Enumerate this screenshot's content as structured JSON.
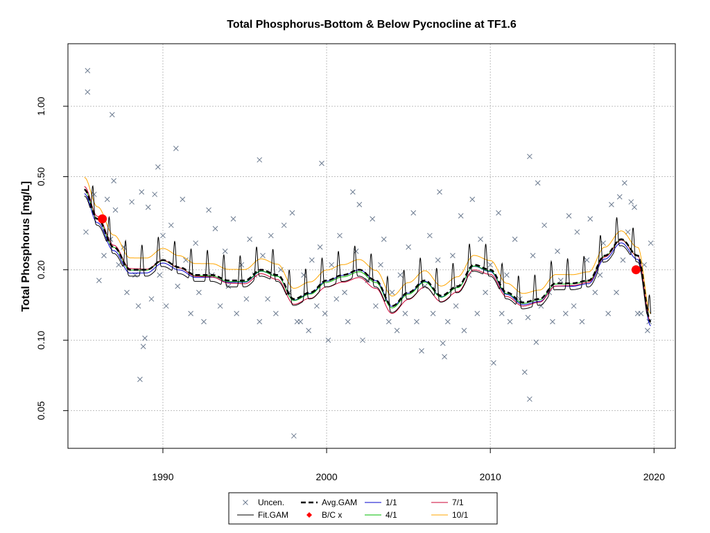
{
  "chart_data": {
    "type": "scatter",
    "title": "Total Phosphorus-Bottom & Below Pycnocline at TF1.6",
    "xlabel": "",
    "ylabel": "Total Phosphorus [mg/L]",
    "y_scale": "log",
    "xlim": [
      1984.2,
      2021.3
    ],
    "ylim": [
      0.0345,
      1.85
    ],
    "x_ticks": [
      1990,
      2000,
      2010,
      2020
    ],
    "x_tick_labels": [
      "1990",
      "2000",
      "2010",
      "2020"
    ],
    "y_ticks": [
      0.05,
      0.1,
      0.2,
      0.5,
      1.0
    ],
    "y_tick_labels": [
      "0.05",
      "0.10",
      "0.20",
      "0.50",
      "1.00"
    ],
    "grid": true,
    "legend_position": "bottom",
    "colors": {
      "uncensored": "#6b7a8f",
      "fit_gam": "#000000",
      "avg_gam": "#000000",
      "bc": "#ff0000",
      "s1_1": "#0000cc",
      "s4_1": "#00bb00",
      "s7_1": "#cc0033",
      "s10_1": "#ffa500",
      "grid": "#bebebe"
    },
    "legend": [
      {
        "label": "Uncen.",
        "key": "uncensored",
        "symbol": "x"
      },
      {
        "label": "Avg.GAM",
        "key": "avg_gam",
        "symbol": "dash"
      },
      {
        "label": "1/1",
        "key": "s1_1",
        "symbol": "line"
      },
      {
        "label": "7/1",
        "key": "s7_1",
        "symbol": "line"
      },
      {
        "label": "Fit.GAM",
        "key": "fit_gam",
        "symbol": "line"
      },
      {
        "label": "B/C x",
        "key": "bc",
        "symbol": "diamond"
      },
      {
        "label": "4/1",
        "key": "s4_1",
        "symbol": "line"
      },
      {
        "label": "10/1",
        "key": "s10_1",
        "symbol": "line"
      }
    ],
    "avg_gam": {
      "x": [
        1985.2,
        1986,
        1987,
        1988,
        1989,
        1990,
        1991,
        1992,
        1993,
        1994,
        1995,
        1996,
        1997,
        1998,
        1999,
        2000,
        2001,
        2002,
        2003,
        2004,
        2005,
        2006,
        2007,
        2008,
        2009,
        2010,
        2011,
        2012,
        2013,
        2014,
        2015,
        2016,
        2017,
        2018,
        2019,
        2019.8
      ],
      "y": [
        0.44,
        0.33,
        0.25,
        0.2,
        0.2,
        0.22,
        0.205,
        0.19,
        0.19,
        0.18,
        0.18,
        0.2,
        0.19,
        0.15,
        0.16,
        0.18,
        0.19,
        0.2,
        0.18,
        0.14,
        0.16,
        0.18,
        0.155,
        0.17,
        0.21,
        0.2,
        0.16,
        0.145,
        0.15,
        0.175,
        0.175,
        0.18,
        0.23,
        0.27,
        0.23,
        0.12
      ]
    },
    "season_offsets": {
      "s1_1": [
        -0.04,
        0.0,
        -0.04
      ],
      "s4_1": [
        0.0,
        -0.02,
        0.0
      ],
      "s7_1": [
        0.03,
        -0.08,
        0.0
      ],
      "s10_1": [
        0.12,
        0.1,
        0.08
      ]
    },
    "fit_gam_amplitude": 0.22,
    "bc_points": [
      {
        "x": 1986.3,
        "y": 0.33
      },
      {
        "x": 2018.9,
        "y": 0.2
      }
    ],
    "uncensored_points": [
      [
        1985.4,
        1.42
      ],
      [
        1985.4,
        1.15
      ],
      [
        1986.9,
        0.92
      ],
      [
        1990.8,
        0.66
      ],
      [
        1989.7,
        0.55
      ],
      [
        1995.9,
        0.59
      ],
      [
        1999.7,
        0.57
      ],
      [
        2012.4,
        0.61
      ],
      [
        2018.2,
        0.47
      ],
      [
        2012.9,
        0.47
      ],
      [
        2006.9,
        0.43
      ],
      [
        2001.6,
        0.43
      ],
      [
        1987.0,
        0.48
      ],
      [
        1985.3,
        0.29
      ],
      [
        1985.8,
        0.42
      ],
      [
        1986.1,
        0.18
      ],
      [
        1986.4,
        0.23
      ],
      [
        1986.6,
        0.4
      ],
      [
        1986.8,
        0.27
      ],
      [
        1987.1,
        0.36
      ],
      [
        1987.3,
        0.21
      ],
      [
        1987.6,
        0.25
      ],
      [
        1987.8,
        0.16
      ],
      [
        1988.1,
        0.39
      ],
      [
        1988.3,
        0.19
      ],
      [
        1988.5,
        0.14
      ],
      [
        1988.7,
        0.43
      ],
      [
        1988.8,
        0.094
      ],
      [
        1988.9,
        0.102
      ],
      [
        1988.6,
        0.068
      ],
      [
        1989.1,
        0.37
      ],
      [
        1989.3,
        0.15
      ],
      [
        1989.5,
        0.42
      ],
      [
        1989.8,
        0.19
      ],
      [
        1990.0,
        0.28
      ],
      [
        1990.2,
        0.14
      ],
      [
        1990.5,
        0.31
      ],
      [
        1990.9,
        0.17
      ],
      [
        1991.2,
        0.4
      ],
      [
        1991.4,
        0.22
      ],
      [
        1991.7,
        0.13
      ],
      [
        1992.0,
        0.26
      ],
      [
        1992.2,
        0.16
      ],
      [
        1992.5,
        0.12
      ],
      [
        1992.8,
        0.36
      ],
      [
        1993.0,
        0.19
      ],
      [
        1993.2,
        0.3
      ],
      [
        1993.5,
        0.14
      ],
      [
        1993.8,
        0.24
      ],
      [
        1994.0,
        0.17
      ],
      [
        1994.3,
        0.33
      ],
      [
        1994.5,
        0.13
      ],
      [
        1994.8,
        0.21
      ],
      [
        1995.1,
        0.15
      ],
      [
        1995.3,
        0.27
      ],
      [
        1995.6,
        0.19
      ],
      [
        1995.9,
        0.12
      ],
      [
        1996.1,
        0.23
      ],
      [
        1996.4,
        0.15
      ],
      [
        1996.6,
        0.28
      ],
      [
        1996.9,
        0.13
      ],
      [
        1997.2,
        0.2
      ],
      [
        1997.4,
        0.31
      ],
      [
        1997.7,
        0.16
      ],
      [
        1997.9,
        0.35
      ],
      [
        1998.0,
        0.039
      ],
      [
        1998.2,
        0.12
      ],
      [
        1998.4,
        0.12
      ],
      [
        1998.6,
        0.19
      ],
      [
        1998.9,
        0.11
      ],
      [
        1999.1,
        0.22
      ],
      [
        1999.4,
        0.14
      ],
      [
        1999.6,
        0.25
      ],
      [
        1999.9,
        0.13
      ],
      [
        2000.1,
        0.1
      ],
      [
        2000.3,
        0.21
      ],
      [
        2000.6,
        0.15
      ],
      [
        2000.8,
        0.28
      ],
      [
        2001.1,
        0.16
      ],
      [
        2001.3,
        0.12
      ],
      [
        2001.8,
        0.24
      ],
      [
        2002.0,
        0.38
      ],
      [
        2002.2,
        0.1
      ],
      [
        2002.5,
        0.18
      ],
      [
        2002.8,
        0.33
      ],
      [
        2003.0,
        0.14
      ],
      [
        2003.3,
        0.21
      ],
      [
        2003.5,
        0.27
      ],
      [
        2003.8,
        0.12
      ],
      [
        2004.0,
        0.16
      ],
      [
        2004.3,
        0.11
      ],
      [
        2004.5,
        0.19
      ],
      [
        2004.8,
        0.13
      ],
      [
        2005.0,
        0.25
      ],
      [
        2005.3,
        0.35
      ],
      [
        2005.5,
        0.12
      ],
      [
        2005.8,
        0.09
      ],
      [
        2006.0,
        0.17
      ],
      [
        2006.3,
        0.28
      ],
      [
        2006.5,
        0.13
      ],
      [
        2006.8,
        0.22
      ],
      [
        2007.1,
        0.097
      ],
      [
        2007.2,
        0.085
      ],
      [
        2007.4,
        0.12
      ],
      [
        2007.7,
        0.23
      ],
      [
        2007.9,
        0.14
      ],
      [
        2008.2,
        0.34
      ],
      [
        2008.4,
        0.11
      ],
      [
        2008.7,
        0.19
      ],
      [
        2008.9,
        0.4
      ],
      [
        2009.2,
        0.13
      ],
      [
        2009.4,
        0.27
      ],
      [
        2009.7,
        0.16
      ],
      [
        2010.0,
        0.21
      ],
      [
        2010.2,
        0.08
      ],
      [
        2010.5,
        0.35
      ],
      [
        2010.7,
        0.13
      ],
      [
        2011.0,
        0.19
      ],
      [
        2011.2,
        0.12
      ],
      [
        2011.5,
        0.27
      ],
      [
        2011.8,
        0.15
      ],
      [
        2012.1,
        0.073
      ],
      [
        2012.3,
        0.125
      ],
      [
        2012.4,
        0.056
      ],
      [
        2012.6,
        0.23
      ],
      [
        2012.8,
        0.098
      ],
      [
        2013.1,
        0.14
      ],
      [
        2013.3,
        0.31
      ],
      [
        2013.6,
        0.16
      ],
      [
        2013.8,
        0.12
      ],
      [
        2014.1,
        0.24
      ],
      [
        2014.3,
        0.18
      ],
      [
        2014.6,
        0.13
      ],
      [
        2014.8,
        0.34
      ],
      [
        2015.1,
        0.14
      ],
      [
        2015.3,
        0.29
      ],
      [
        2015.6,
        0.12
      ],
      [
        2015.9,
        0.22
      ],
      [
        2016.1,
        0.33
      ],
      [
        2016.4,
        0.16
      ],
      [
        2016.7,
        0.19
      ],
      [
        2016.9,
        0.26
      ],
      [
        2017.2,
        0.13
      ],
      [
        2017.4,
        0.38
      ],
      [
        2017.7,
        0.16
      ],
      [
        2017.9,
        0.41
      ],
      [
        2018.1,
        0.22
      ],
      [
        2018.4,
        0.29
      ],
      [
        2018.6,
        0.39
      ],
      [
        2018.8,
        0.37
      ],
      [
        2019.0,
        0.13
      ],
      [
        2019.2,
        0.13
      ],
      [
        2019.4,
        0.21
      ],
      [
        2019.6,
        0.11
      ],
      [
        2019.8,
        0.26
      ],
      [
        2019.7,
        0.12
      ]
    ]
  }
}
